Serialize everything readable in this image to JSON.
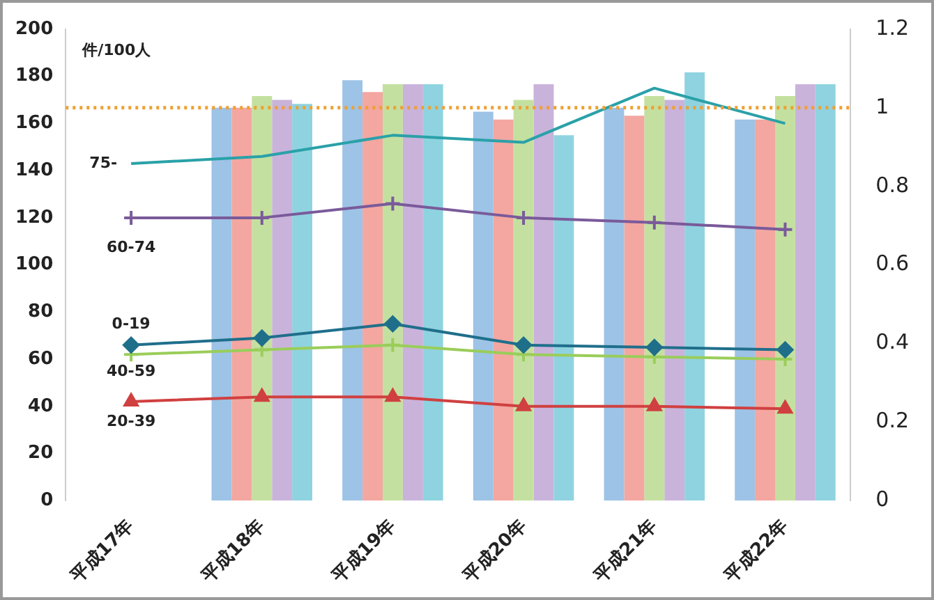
{
  "chart_data": {
    "type": "bar",
    "ylabel": "件/100人",
    "categories": [
      "平成17年",
      "平成18年",
      "平成19年",
      "平成20年",
      "平成21年",
      "平成22年"
    ],
    "series": [
      {
        "color": "#9dc3e6",
        "axis": "y2",
        "values": [
          null,
          1.0,
          1.07,
          0.99,
          1.0,
          0.97
        ]
      },
      {
        "color": "#f4a6a0",
        "axis": "y2",
        "values": [
          null,
          1.0,
          1.04,
          0.97,
          0.98,
          0.97
        ]
      },
      {
        "color": "#c4e0a0",
        "axis": "y2",
        "values": [
          null,
          1.03,
          1.06,
          1.02,
          1.03,
          1.03
        ]
      },
      {
        "color": "#c9b3db",
        "axis": "y2",
        "values": [
          null,
          1.02,
          1.06,
          1.06,
          1.02,
          1.06
        ]
      },
      {
        "color": "#8fd3e0",
        "axis": "y2",
        "values": [
          null,
          1.01,
          1.06,
          0.93,
          1.09,
          1.06
        ]
      },
      {
        "type": "line",
        "name": "75-",
        "color": "#2aa1a8",
        "marker": "none",
        "values": [
          143,
          146,
          155,
          152,
          175,
          160
        ]
      },
      {
        "type": "line",
        "name": "60-74",
        "color": "#7a5a9a",
        "marker": "cross",
        "values": [
          120,
          120,
          126,
          120,
          118,
          115
        ]
      },
      {
        "type": "line",
        "name": "0-19",
        "color": "#1f6f8b",
        "marker": "diamond",
        "values": [
          66,
          69,
          75,
          66,
          65,
          64
        ]
      },
      {
        "type": "line",
        "name": "40-59",
        "color": "#9acd5a",
        "marker": "cross",
        "values": [
          62,
          64,
          66,
          62,
          61,
          60
        ]
      },
      {
        "type": "line",
        "name": "20-39",
        "color": "#d04040",
        "marker": "triangle",
        "values": [
          42,
          44,
          44,
          40,
          40,
          39
        ]
      }
    ],
    "ylim": [
      0,
      200
    ],
    "yticks": [
      0,
      20,
      40,
      60,
      80,
      100,
      120,
      140,
      160,
      180,
      200
    ],
    "y2lim": [
      0,
      1.2
    ],
    "y2ticks": [
      0,
      0.2,
      0.4,
      0.6,
      0.8,
      1,
      1.2
    ],
    "ref_lines": [
      {
        "axis": "y2",
        "value": 1,
        "color": "#f0a030",
        "line_style": "dotted"
      }
    ],
    "grid": false
  }
}
